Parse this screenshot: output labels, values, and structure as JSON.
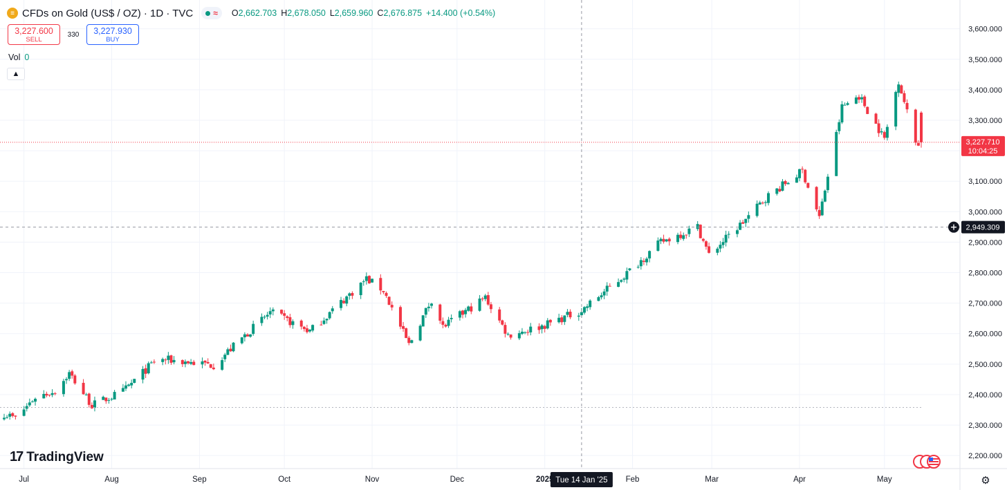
{
  "header": {
    "symbol_icon": "gold-bars-icon",
    "title": "CFDs on Gold (US$ / OZ) · 1D · TVC",
    "status_icon": "market-open-dot-icon",
    "delayed_icon": "approx-icon",
    "ohlc": {
      "o_label": "O",
      "o_value": "2,662.703",
      "h_label": "H",
      "h_value": "2,678.050",
      "l_label": "L",
      "l_value": "2,659.960",
      "c_label": "C",
      "c_value": "2,676.875",
      "change": "+14.400 (+0.54%)"
    }
  },
  "trade": {
    "sell_price": "3,227.600",
    "sell_label": "SELL",
    "spread": "330",
    "buy_price": "3,227.930",
    "buy_label": "BUY"
  },
  "volume": {
    "label": "Vol",
    "value": "0"
  },
  "logo_text": "TradingView",
  "colors": {
    "up": "#089981",
    "down": "#f23645",
    "crosshair": "#9598a1",
    "grid": "#f0f3fa"
  },
  "chart_data": {
    "type": "candlestick",
    "y_ticks": [
      "2,200.000",
      "2,300.000",
      "2,400.000",
      "2,500.000",
      "2,600.000",
      "2,700.000",
      "2,800.000",
      "2,900.000",
      "3,000.000",
      "3,100.000",
      "3,200.000",
      "3,300.000",
      "3,400.000",
      "3,500.000",
      "3,600.000"
    ],
    "ylim": [
      2180,
      3640
    ],
    "x_ticks": [
      "Jul",
      "Aug",
      "Sep",
      "Oct",
      "Nov",
      "Dec",
      "2025",
      "Feb",
      "Mar",
      "Apr",
      "May"
    ],
    "x_tick_dates": [
      "2024-07-01",
      "2024-08-01",
      "2024-09-01",
      "2024-10-01",
      "2024-11-01",
      "2024-12-01",
      "2025-01-01",
      "2025-02-01",
      "2025-03-01",
      "2025-04-01",
      "2025-05-01"
    ],
    "x_range": [
      "2024-06-24",
      "2025-05-14"
    ],
    "crosshair": {
      "x_label": "Tue 14 Jan '25",
      "x_date": "2025-01-14",
      "y_value": 2949.309,
      "y_label": "2,949.309"
    },
    "last_price": {
      "value": 3227.71,
      "label": "3,227.710",
      "countdown": "10:04:25"
    },
    "reference_line_value": 2358,
    "monthly_closes": [
      {
        "month": "2024-06",
        "close": 2326
      },
      {
        "month": "2024-07",
        "close": 2447
      },
      {
        "month": "2024-08",
        "close": 2503
      },
      {
        "month": "2024-09",
        "close": 2634
      },
      {
        "month": "2024-10",
        "close": 2743
      },
      {
        "month": "2024-11",
        "close": 2643
      },
      {
        "month": "2024-12",
        "close": 2625
      },
      {
        "month": "2025-01",
        "close": 2798
      },
      {
        "month": "2025-02",
        "close": 2858
      },
      {
        "month": "2025-03",
        "close": 3123
      },
      {
        "month": "2025-04",
        "close": 3289
      },
      {
        "month": "2025-05",
        "close": 3228
      }
    ],
    "waypoints": [
      [
        "2024-06-24",
        2338
      ],
      [
        "2024-06-28",
        2322
      ],
      [
        "2024-07-05",
        2392
      ],
      [
        "2024-07-12",
        2412
      ],
      [
        "2024-07-17",
        2470
      ],
      [
        "2024-07-25",
        2365
      ],
      [
        "2024-08-05",
        2410
      ],
      [
        "2024-08-16",
        2508
      ],
      [
        "2024-08-20",
        2515
      ],
      [
        "2024-09-06",
        2497
      ],
      [
        "2024-09-20",
        2620
      ],
      [
        "2024-09-26",
        2670
      ],
      [
        "2024-10-10",
        2608
      ],
      [
        "2024-10-30",
        2780
      ],
      [
        "2024-11-05",
        2742
      ],
      [
        "2024-11-14",
        2563
      ],
      [
        "2024-11-22",
        2712
      ],
      [
        "2024-11-26",
        2622
      ],
      [
        "2024-12-11",
        2718
      ],
      [
        "2024-12-19",
        2595
      ],
      [
        "2024-12-31",
        2625
      ],
      [
        "2025-01-14",
        2676
      ],
      [
        "2025-01-30",
        2798
      ],
      [
        "2025-02-11",
        2900
      ],
      [
        "2025-02-24",
        2950
      ],
      [
        "2025-02-28",
        2858
      ],
      [
        "2025-03-14",
        2984
      ],
      [
        "2025-03-20",
        3045
      ],
      [
        "2025-04-02",
        3134
      ],
      [
        "2025-04-08",
        2982
      ],
      [
        "2025-04-16",
        3343
      ],
      [
        "2025-04-22",
        3381
      ],
      [
        "2025-05-01",
        3239
      ],
      [
        "2025-05-06",
        3431
      ],
      [
        "2025-05-09",
        3326
      ],
      [
        "2025-05-12",
        3228
      ]
    ]
  }
}
